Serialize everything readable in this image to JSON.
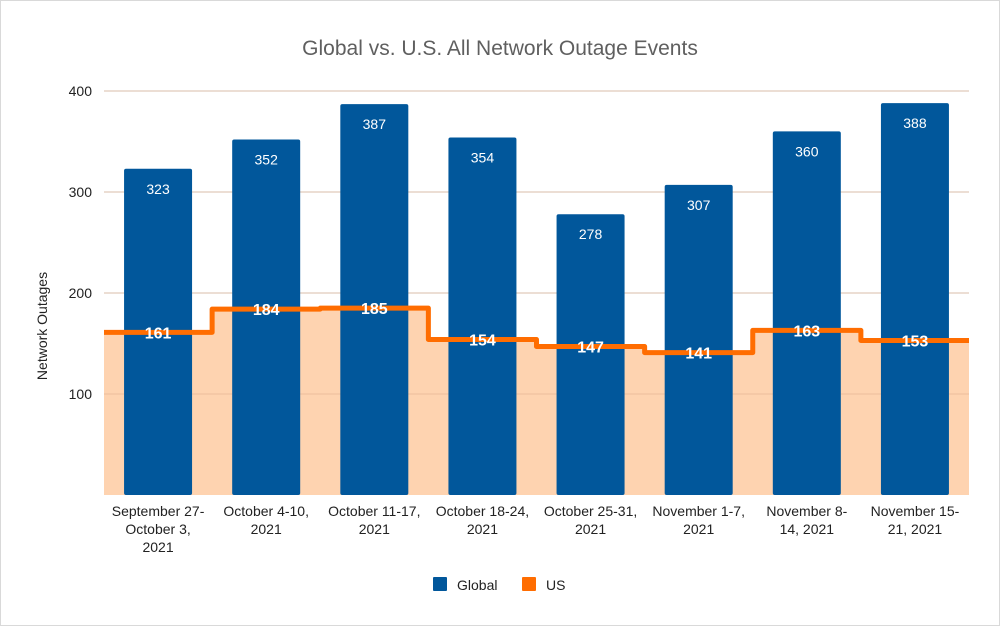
{
  "chart_data": {
    "type": "bar",
    "title": "Global vs. U.S. All Network Outage Events",
    "xlabel": "",
    "ylabel": "Network Outages",
    "ylim": [
      0,
      400
    ],
    "yticks": [
      100,
      200,
      300,
      400
    ],
    "grid": true,
    "legend_position": "bottom",
    "categories": [
      [
        "September 27-",
        "October 3,",
        "2021"
      ],
      [
        "October 4-10,",
        "2021"
      ],
      [
        "October 11-17,",
        "2021"
      ],
      [
        "October 18-24,",
        "2021"
      ],
      [
        "October 25-31,",
        "2021"
      ],
      [
        "November 1-7,",
        "2021"
      ],
      [
        "November 8-",
        "14, 2021"
      ],
      [
        "November 15-",
        "21, 2021"
      ]
    ],
    "series": [
      {
        "name": "Global",
        "type": "bar",
        "color": "#01579b",
        "values": [
          323,
          352,
          387,
          354,
          278,
          307,
          360,
          388
        ]
      },
      {
        "name": "US",
        "type": "stepped-area",
        "color": "#ff6d01",
        "fill": "#fed3b0",
        "values": [
          161,
          184,
          185,
          154,
          147,
          141,
          163,
          153
        ]
      }
    ]
  }
}
